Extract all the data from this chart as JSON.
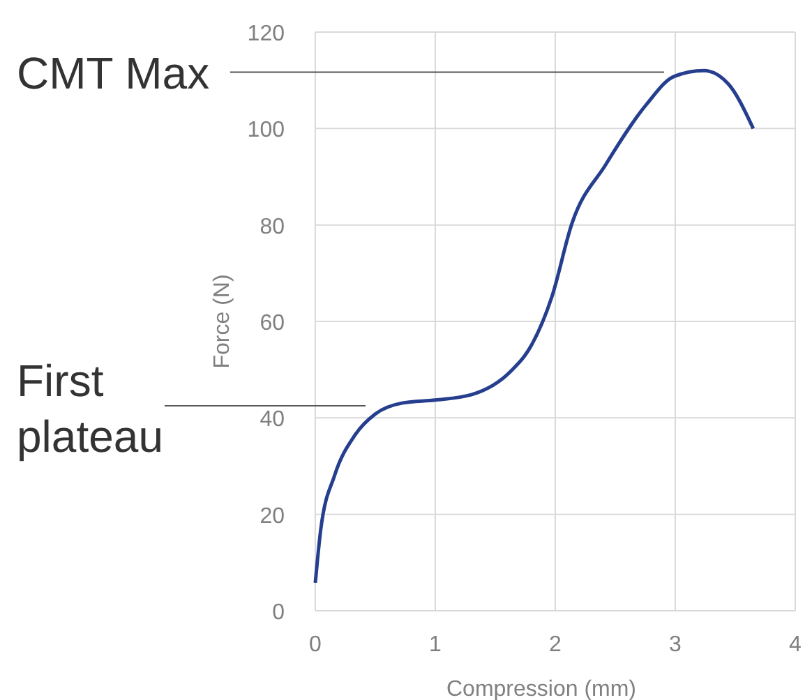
{
  "chart_data": {
    "type": "line",
    "xlabel": "Compression (mm)",
    "ylabel": "Force (N)",
    "x": [
      0,
      0.045,
      0.16,
      0.33,
      0.5,
      0.73,
      1.0,
      1.3,
      1.63,
      1.8,
      1.97,
      2.14,
      2.42,
      2.76,
      2.99,
      3.24,
      3.44,
      3.65
    ],
    "series": [
      {
        "color": "#253f8e",
        "values": [
          5.8,
          16.8,
          28,
          36.4,
          40.8,
          43.1,
          43.7,
          44.8,
          49.7,
          55,
          65,
          80.4,
          92.5,
          105,
          110.8,
          112,
          109.3,
          100
        ]
      }
    ],
    "xlim": [
      0,
      4
    ],
    "xticks": [
      0,
      1,
      2,
      3,
      4
    ],
    "ylim": [
      0,
      120
    ],
    "yticks": [
      0,
      20,
      40,
      60,
      80,
      100,
      120
    ],
    "grid": true,
    "ref_lines": [
      {
        "axis": "y",
        "value": 111.7,
        "label": "CMT Max",
        "color": "#555555"
      },
      {
        "axis": "y",
        "value": 42.5,
        "label": "First plateau",
        "color": "#555555"
      }
    ]
  }
}
